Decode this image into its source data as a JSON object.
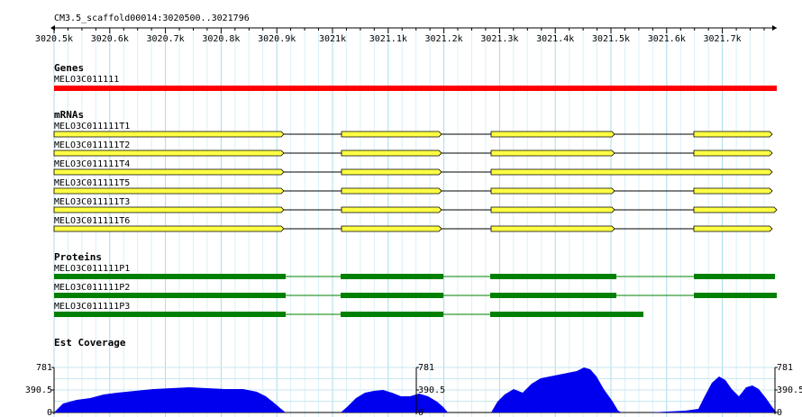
{
  "location": "CM3.5_scaffold00014:3020500..3021796",
  "ruler": {
    "ticks": [
      "3020.5k",
      "3020.6k",
      "3020.7k",
      "3020.8k",
      "3020.9k",
      "3021k",
      "3021.1k",
      "3021.2k",
      "3021.3k",
      "3021.4k",
      "3021.5k",
      "3021.6k",
      "3021.7k"
    ]
  },
  "tracks": {
    "genes": {
      "title": "Genes",
      "features": [
        {
          "name": "MELO3C011111",
          "color": "#ff0000"
        }
      ]
    },
    "mrnas": {
      "title": "mRNAs",
      "color": "#ffff44",
      "features": [
        {
          "name": "MELO3C011111T1"
        },
        {
          "name": "MELO3C011111T2"
        },
        {
          "name": "MELO3C011111T4"
        },
        {
          "name": "MELO3C011111T5"
        },
        {
          "name": "MELO3C011111T3"
        },
        {
          "name": "MELO3C011111T6"
        }
      ]
    },
    "proteins": {
      "title": "Proteins",
      "color": "#008000",
      "features": [
        {
          "name": "MELO3C011111P1"
        },
        {
          "name": "MELO3C011111P2"
        },
        {
          "name": "MELO3C011111P3"
        }
      ]
    },
    "coverage": {
      "title": "Est Coverage",
      "color": "#0000ee",
      "axis_max": "781",
      "axis_mid": "390.5",
      "axis_min": "0",
      "axis_labels": [
        "781",
        "390.5",
        "0"
      ]
    }
  }
}
